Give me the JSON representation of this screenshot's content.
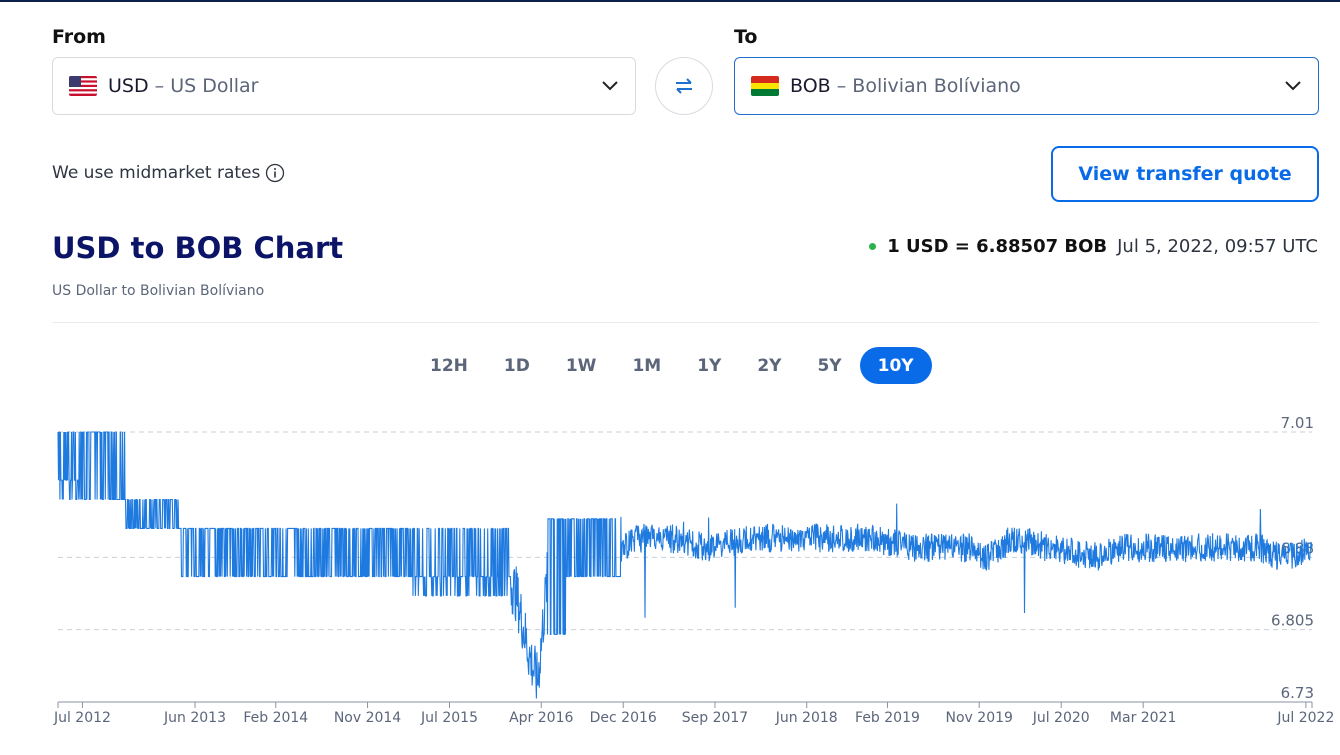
{
  "converter": {
    "from_label": "From",
    "to_label": "To",
    "from": {
      "code": "USD",
      "separator": " – ",
      "name": "US Dollar",
      "flag": "us-flag-icon"
    },
    "to": {
      "code": "BOB",
      "separator": " – ",
      "name": "Bolivian Bolíviano",
      "flag": "bolivia-flag-icon"
    },
    "rates_note": "We use midmarket rates",
    "quote_button": "View transfer quote"
  },
  "chart_header": {
    "title": "USD to BOB Chart",
    "subtitle": "US Dollar to Bolivian Bolíviano",
    "rate": "1 USD = 6.88507 BOB",
    "timestamp": "Jul 5, 2022, 09:57 UTC"
  },
  "ranges": [
    "12H",
    "1D",
    "1W",
    "1M",
    "1Y",
    "2Y",
    "5Y",
    "10Y"
  ],
  "selected_range": "10Y",
  "colors": {
    "accent": "#0a6be8",
    "line": "#1f7ae0",
    "title": "#0b1466",
    "live_dot": "#2bb24c"
  },
  "chart_data": {
    "type": "line",
    "title": "",
    "xlabel": "",
    "ylabel": "",
    "ylim": [
      6.73,
      7.01
    ],
    "y_ticks": [
      "7.01",
      "6.88",
      "6.805",
      "6.73"
    ],
    "y_tick_values": [
      7.01,
      6.88,
      6.805,
      6.73
    ],
    "x_ticks": [
      "Jul 2012",
      "Jun 2013",
      "Feb 2014",
      "Nov 2014",
      "Jul 2015",
      "Apr 2016",
      "Dec 2016",
      "Sep 2017",
      "Jun 2018",
      "Feb 2019",
      "Nov 2019",
      "Jul 2020",
      "Mar 2021",
      "Jul 2022"
    ],
    "x_tick_years": [
      2012.5,
      2013.42,
      2014.08,
      2014.83,
      2015.5,
      2016.25,
      2016.92,
      2017.67,
      2018.42,
      2019.08,
      2019.83,
      2020.5,
      2021.17,
      2022.5
    ],
    "x_range": [
      2012.3,
      2022.55
    ],
    "grid": "dashed horizontal",
    "series": [
      {
        "x": [
          2012.3,
          2012.35,
          2012.55,
          2012.85,
          2013.2,
          2013.4,
          2013.8,
          2014.3,
          2014.8,
          2015.2,
          2015.5,
          2015.7,
          2015.95,
          2016.05,
          2016.15,
          2016.22,
          2016.3,
          2016.45,
          2016.6,
          2016.8,
          2017.0,
          2017.3,
          2017.6,
          2018.0,
          2018.3,
          2018.5,
          2018.9,
          2019.3,
          2019.6,
          2019.75,
          2019.9,
          2020.1,
          2020.4,
          2020.8,
          2021.0,
          2021.3,
          2021.6,
          2021.9,
          2022.1,
          2022.3,
          2022.5
        ],
        "y": [
          6.96,
          6.97,
          6.94,
          6.91,
          6.91,
          6.86,
          6.86,
          6.86,
          6.86,
          6.86,
          6.85,
          6.86,
          6.87,
          6.84,
          6.78,
          6.75,
          6.86,
          6.86,
          6.88,
          6.87,
          6.9,
          6.9,
          6.89,
          6.9,
          6.9,
          6.9,
          6.9,
          6.89,
          6.89,
          6.89,
          6.88,
          6.9,
          6.89,
          6.88,
          6.89,
          6.89,
          6.89,
          6.89,
          6.89,
          6.88,
          6.885
        ]
      }
    ]
  }
}
